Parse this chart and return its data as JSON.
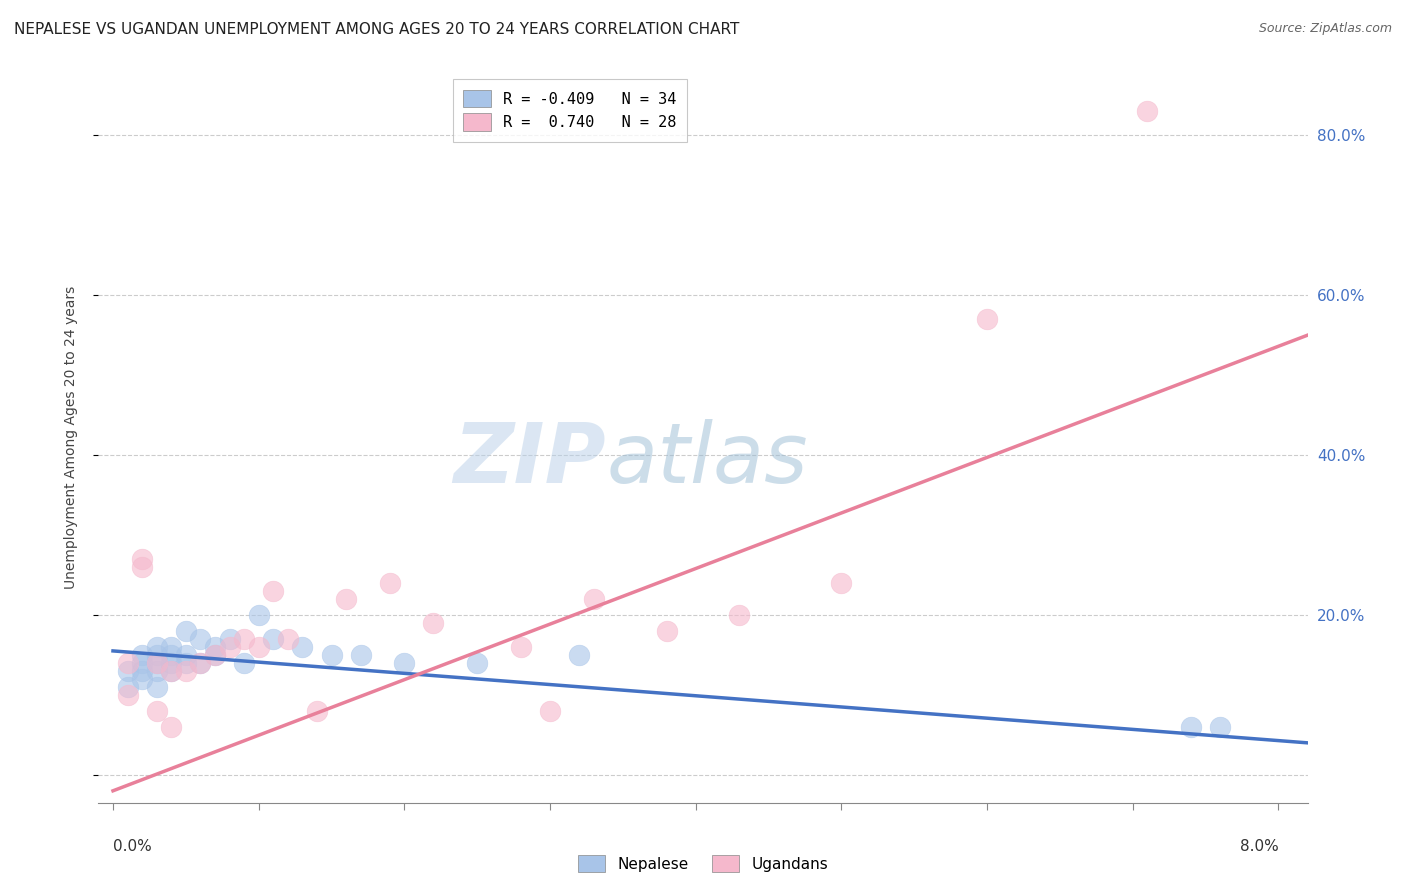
{
  "title": "NEPALESE VS UGANDAN UNEMPLOYMENT AMONG AGES 20 TO 24 YEARS CORRELATION CHART",
  "source": "Source: ZipAtlas.com",
  "ylabel": "Unemployment Among Ages 20 to 24 years",
  "watermark_zip": "ZIP",
  "watermark_atlas": "atlas",
  "legend_line1": "R = -0.409   N = 34",
  "legend_line2": "R =  0.740   N = 28",
  "nepalese_color": "#a8c4e8",
  "ugandan_color": "#f5b8cc",
  "nepalese_line_color": "#4472c4",
  "ugandan_line_color": "#e8809a",
  "ytick_values": [
    0.0,
    0.2,
    0.4,
    0.6,
    0.8
  ],
  "xlim": [
    -0.001,
    0.082
  ],
  "ylim": [
    -0.035,
    0.88
  ],
  "nepalese_x": [
    0.001,
    0.001,
    0.002,
    0.002,
    0.002,
    0.002,
    0.003,
    0.003,
    0.003,
    0.003,
    0.003,
    0.004,
    0.004,
    0.004,
    0.004,
    0.005,
    0.005,
    0.005,
    0.006,
    0.006,
    0.007,
    0.007,
    0.008,
    0.009,
    0.01,
    0.011,
    0.013,
    0.015,
    0.017,
    0.02,
    0.025,
    0.032,
    0.074,
    0.076
  ],
  "nepalese_y": [
    0.13,
    0.11,
    0.15,
    0.14,
    0.13,
    0.12,
    0.16,
    0.15,
    0.14,
    0.13,
    0.11,
    0.16,
    0.15,
    0.14,
    0.13,
    0.18,
    0.15,
    0.14,
    0.17,
    0.14,
    0.16,
    0.15,
    0.17,
    0.14,
    0.2,
    0.17,
    0.16,
    0.15,
    0.15,
    0.14,
    0.14,
    0.15,
    0.06,
    0.06
  ],
  "ugandan_x": [
    0.001,
    0.001,
    0.002,
    0.002,
    0.003,
    0.003,
    0.004,
    0.004,
    0.005,
    0.006,
    0.007,
    0.008,
    0.009,
    0.01,
    0.011,
    0.012,
    0.014,
    0.016,
    0.019,
    0.022,
    0.028,
    0.03,
    0.033,
    0.038,
    0.043,
    0.05,
    0.06,
    0.071
  ],
  "ugandan_y": [
    0.14,
    0.1,
    0.27,
    0.26,
    0.14,
    0.08,
    0.13,
    0.06,
    0.13,
    0.14,
    0.15,
    0.16,
    0.17,
    0.16,
    0.23,
    0.17,
    0.08,
    0.22,
    0.24,
    0.19,
    0.16,
    0.08,
    0.22,
    0.18,
    0.2,
    0.24,
    0.57,
    0.83
  ],
  "nepalese_trend_x": [
    0.0,
    0.082
  ],
  "nepalese_trend_y": [
    0.155,
    0.04
  ],
  "ugandan_trend_x": [
    0.0,
    0.082
  ],
  "ugandan_trend_y": [
    -0.02,
    0.55
  ],
  "title_fontsize": 11,
  "source_fontsize": 9,
  "ylabel_fontsize": 10,
  "tick_fontsize": 11,
  "watermark_fontsize_zip": 60,
  "watermark_fontsize_atlas": 60,
  "legend_fontsize": 11,
  "background_color": "#ffffff",
  "grid_color": "#cccccc",
  "right_tick_color": "#4472c4"
}
